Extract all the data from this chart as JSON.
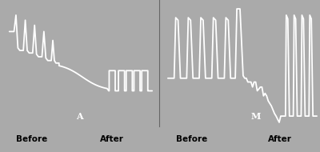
{
  "bg_color": "#000000",
  "fig_bg_color": "#aaaaaa",
  "line_color": "#ffffff",
  "label_color": "#000000",
  "panel_labels": [
    "A",
    "M"
  ],
  "bottom_labels_left": [
    "Before",
    "After"
  ],
  "bottom_labels_right": [
    "Before",
    "After"
  ],
  "lw": 1.3
}
